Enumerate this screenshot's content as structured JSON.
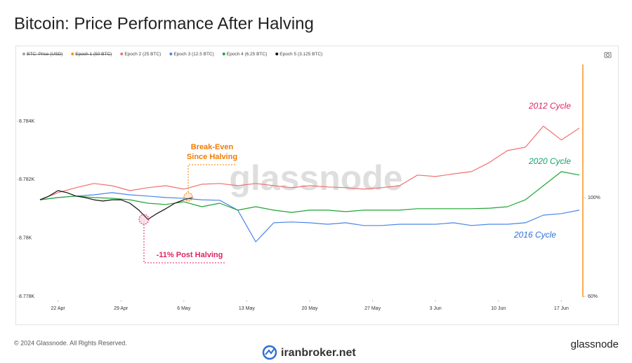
{
  "chart_data": {
    "type": "line",
    "title": "Bitcoin: Price Performance After Halving",
    "footer": "© 2024 Glassnode. All Rights Reserved.",
    "brand": "glassnode",
    "watermark": "glassnode",
    "site": "iranbroker.net",
    "hidden_series": [
      {
        "name": "BTC: Price (USD)",
        "color": "#9e9e9e"
      },
      {
        "name": "Epoch 1 (50 BTC)",
        "color": "#f7931a"
      }
    ],
    "series": [
      {
        "name": "Epoch 2 (25 BTC)",
        "color": "#f0716f",
        "axis": "y2",
        "x": [
          0,
          2,
          4,
          6,
          8,
          10,
          12,
          14,
          16,
          18,
          20,
          22,
          24,
          26,
          28,
          30,
          32,
          34,
          36,
          38,
          40,
          42,
          44,
          46,
          48,
          50,
          52,
          54,
          56,
          58,
          60
        ],
        "values": [
          99.1,
          102.0,
          104.0,
          105.7,
          104.8,
          102.8,
          104.0,
          104.8,
          103.4,
          105.4,
          105.7,
          104.8,
          105.7,
          104.8,
          104.0,
          104.8,
          104.3,
          104.0,
          103.4,
          104.0,
          104.8,
          109.1,
          108.5,
          109.6,
          110.5,
          114.2,
          119.0,
          120.4,
          128.9,
          123.3,
          128.1
        ]
      },
      {
        "name": "Epoch 3 (12.5 BTC)",
        "color": "#4a86e8",
        "axis": "y2",
        "x": [
          0,
          2,
          4,
          6,
          8,
          10,
          12,
          14,
          16,
          18,
          20,
          22,
          24,
          26,
          28,
          30,
          32,
          34,
          36,
          38,
          40,
          42,
          44,
          46,
          48,
          50,
          52,
          54,
          56,
          58,
          60
        ],
        "values": [
          99.1,
          100.0,
          100.6,
          101.1,
          102.0,
          101.1,
          100.6,
          100.0,
          99.7,
          99.1,
          98.9,
          94.9,
          82.1,
          89.8,
          90.1,
          89.8,
          89.2,
          89.8,
          88.7,
          88.7,
          89.2,
          89.2,
          89.2,
          89.8,
          88.7,
          89.2,
          89.2,
          89.8,
          92.9,
          93.5,
          94.9
        ]
      },
      {
        "name": "Epoch 4 (6.25 BTC)",
        "color": "#1fa535",
        "axis": "y2",
        "x": [
          0,
          2,
          4,
          6,
          8,
          10,
          12,
          14,
          16,
          18,
          20,
          22,
          24,
          26,
          28,
          30,
          32,
          34,
          36,
          38,
          40,
          42,
          44,
          46,
          48,
          50,
          52,
          54,
          56,
          58,
          60
        ],
        "values": [
          99.1,
          100.0,
          100.6,
          100.0,
          99.7,
          99.1,
          97.7,
          97.2,
          98.3,
          96.3,
          97.7,
          94.9,
          96.3,
          94.9,
          94.0,
          94.9,
          94.9,
          94.3,
          94.9,
          94.9,
          94.9,
          95.5,
          95.5,
          95.5,
          95.5,
          95.7,
          96.3,
          99.1,
          104.8,
          110.5,
          109.1
        ]
      },
      {
        "name": "Epoch 5 (3.125 BTC)",
        "color": "#111111",
        "axis": "y2",
        "x": [
          0,
          1,
          2,
          3,
          4,
          5,
          6,
          7,
          8,
          9,
          10,
          11,
          12,
          13,
          14,
          15,
          16,
          17
        ],
        "values": [
          99.1,
          100.6,
          102.8,
          102.0,
          100.6,
          100.0,
          99.1,
          98.6,
          99.1,
          99.1,
          97.7,
          94.9,
          91.2,
          93.5,
          95.5,
          97.7,
          99.1,
          100.0
        ]
      }
    ],
    "xlim": [
      -2,
      60
    ],
    "xticks": [
      {
        "value": 2,
        "label": "22 Apr"
      },
      {
        "value": 9,
        "label": "29 Apr"
      },
      {
        "value": 16,
        "label": "6 May"
      },
      {
        "value": 23,
        "label": "13 May"
      },
      {
        "value": 30,
        "label": "20 May"
      },
      {
        "value": 37,
        "label": "27 May"
      },
      {
        "value": 44,
        "label": "3 Jun"
      },
      {
        "value": 51,
        "label": "10 Jun"
      },
      {
        "value": 58,
        "label": "17 Jun"
      }
    ],
    "ylim": [
      8778,
      8786
    ],
    "yticks": [
      {
        "value": 8778,
        "label": "8.778K"
      },
      {
        "value": 8780,
        "label": "8.78K"
      },
      {
        "value": 8782,
        "label": "8.782K"
      },
      {
        "value": 8784,
        "label": "8.784K"
      }
    ],
    "y2lim": [
      60,
      154.5
    ],
    "y2ticks": [
      {
        "value": 60,
        "label": "60%"
      },
      {
        "value": 100,
        "label": "100%"
      }
    ],
    "grid": false,
    "annotations": {
      "cycle_2012": "2012 Cycle",
      "cycle_2020": "2020 Cycle",
      "cycle_2016": "2016 Cycle",
      "break_even_1": "Break-Even",
      "break_even_2": "Since Halving",
      "post_halving": "-11% Post Halving"
    }
  }
}
